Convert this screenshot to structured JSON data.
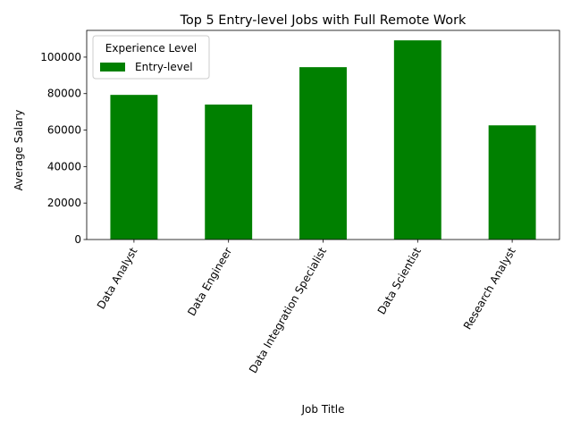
{
  "chart_data": {
    "type": "bar",
    "title": "Top 5 Entry-level Jobs with Full Remote Work",
    "xlabel": "Job Title",
    "ylabel": "Average Salary",
    "categories": [
      "Data Analyst",
      "Data Engineer",
      "Data Integration Specialist",
      "Data Scientist",
      "Research Analyst"
    ],
    "series": [
      {
        "name": "Entry-level",
        "values": [
          79300,
          74000,
          94500,
          109200,
          62600
        ],
        "color": "#008000"
      }
    ],
    "ylim": [
      0,
      114660
    ],
    "yticks": [
      0,
      20000,
      40000,
      60000,
      80000,
      100000
    ],
    "ytick_labels": [
      "0",
      "20000",
      "40000",
      "60000",
      "80000",
      "100000"
    ],
    "legend": {
      "title": "Experience Level",
      "position": "top-left"
    },
    "grid": false,
    "xtick_rotation_deg": 60
  }
}
